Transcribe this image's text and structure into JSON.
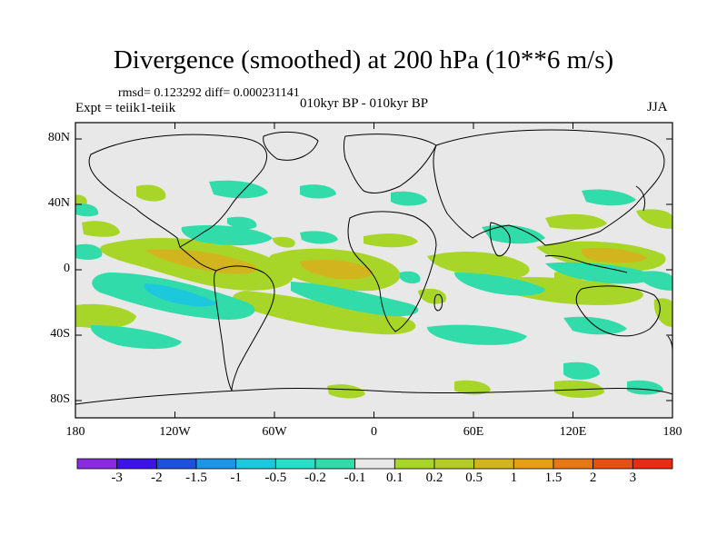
{
  "header": {
    "title": "Divergence (smoothed) at 200 hPa (10**6 m/s)",
    "stats": "rmsd= 0.123292  diff= 0.000231141",
    "expt": "Expt = teiik1-teiik",
    "center": "010kyr BP - 010kyr BP",
    "season": "JJA"
  },
  "axes": {
    "y_ticks": [
      {
        "label": "80N",
        "lat": 80
      },
      {
        "label": "40N",
        "lat": 40
      },
      {
        "label": "0",
        "lat": 0
      },
      {
        "label": "40S",
        "lat": -40
      },
      {
        "label": "80S",
        "lat": -80
      }
    ],
    "x_ticks": [
      {
        "label": "180",
        "lon": -180
      },
      {
        "label": "120W",
        "lon": -120
      },
      {
        "label": "60W",
        "lon": -60
      },
      {
        "label": "0",
        "lon": 0
      },
      {
        "label": "60E",
        "lon": 60
      },
      {
        "label": "120E",
        "lon": 120
      },
      {
        "label": "180",
        "lon": 180
      }
    ]
  },
  "colorbar": {
    "colors": [
      "#8a2be2",
      "#3c14e6",
      "#1e50dc",
      "#1e96e6",
      "#1ec8dc",
      "#28e0c8",
      "#32dcaa",
      "#e8e8e8",
      "#a8d628",
      "#b4cc28",
      "#d2b41e",
      "#e6a014",
      "#e67814",
      "#e65014",
      "#e62d14"
    ],
    "labels": [
      "-3",
      "-2",
      "-1.5",
      "-1",
      "-0.5",
      "-0.2",
      "-0.1",
      "0.1",
      "0.2",
      "0.5",
      "1",
      "1.5",
      "2",
      "3"
    ]
  },
  "legend_colors": {
    "background": "#e8e8e8",
    "positive": "#a8d628",
    "positive_strong": "#d2b41e",
    "negative": "#32dcaa",
    "negative_strong": "#1ec8dc"
  }
}
